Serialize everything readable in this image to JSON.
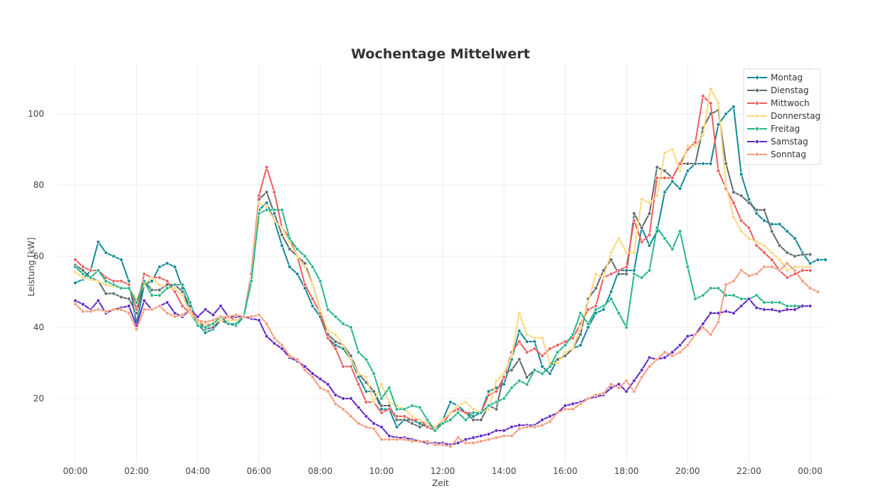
{
  "chart_data": {
    "type": "line",
    "title": "Wochentage Mittelwert",
    "xlabel": "Zeit",
    "ylabel": "Leistung [kW]",
    "ylim": [
      2,
      114
    ],
    "yticks": [
      20,
      40,
      60,
      80,
      100
    ],
    "xlim": [
      -0.6,
      24.5
    ],
    "xticks": [
      {
        "pos": 0,
        "label": "00:00"
      },
      {
        "pos": 2,
        "label": "02:00"
      },
      {
        "pos": 4,
        "label": "04:00"
      },
      {
        "pos": 6,
        "label": "06:00"
      },
      {
        "pos": 8,
        "label": "08:00"
      },
      {
        "pos": 10,
        "label": "10:00"
      },
      {
        "pos": 12,
        "label": "12:00"
      },
      {
        "pos": 14,
        "label": "14:00"
      },
      {
        "pos": 16,
        "label": "16:00"
      },
      {
        "pos": 18,
        "label": "18:00"
      },
      {
        "pos": 20,
        "label": "20:00"
      },
      {
        "pos": 22,
        "label": "22:00"
      },
      {
        "pos": 24,
        "label": "00:00"
      }
    ],
    "x_interval_hours": 0.25,
    "grid": true,
    "legend_position": "top-right",
    "series": [
      {
        "name": "Montag",
        "color": "#108a96",
        "values": [
          52.5,
          53.5,
          56,
          64,
          61,
          60,
          59,
          53,
          41,
          52,
          53,
          57,
          58,
          57,
          51,
          44,
          41,
          38.5,
          39.5,
          42,
          41,
          40.5,
          43,
          53,
          73,
          75,
          70,
          63,
          57,
          55,
          51,
          46,
          43,
          37,
          35,
          34,
          31,
          26,
          22,
          22,
          17,
          17,
          12,
          14,
          14,
          13,
          12,
          11,
          14,
          19,
          18,
          16,
          15,
          16,
          22,
          23,
          24,
          31,
          39,
          36,
          36,
          29,
          27,
          31,
          32,
          34,
          35,
          40,
          44,
          45,
          50,
          56,
          56,
          56,
          68,
          63,
          67,
          78,
          81,
          79,
          84,
          86,
          86,
          86,
          97,
          100,
          102,
          83,
          76,
          72,
          70,
          69,
          69,
          67,
          65,
          61,
          58,
          59,
          59
        ]
      },
      {
        "name": "Dienstag",
        "color": "#5f6b6d",
        "values": [
          57.5,
          56,
          54,
          53,
          49.5,
          49.5,
          48.5,
          48,
          44,
          53,
          50.5,
          50.5,
          52,
          52,
          50,
          46,
          42,
          39.5,
          40,
          42,
          41,
          41,
          43,
          55,
          76,
          78,
          72,
          66,
          62,
          60,
          58,
          52,
          45,
          38,
          36,
          35,
          32,
          27,
          24.5,
          22,
          18,
          18,
          14,
          14,
          13,
          12,
          13,
          11.5,
          14,
          16,
          17,
          16,
          14,
          14,
          18,
          17,
          27,
          28,
          31,
          26,
          28,
          27,
          29,
          31,
          32,
          34,
          38,
          48,
          51,
          56,
          59,
          55,
          55,
          72,
          68,
          72,
          85,
          84,
          82,
          86,
          86,
          86,
          96,
          100,
          101,
          86,
          78,
          77,
          75,
          73,
          73,
          67,
          63,
          61,
          60,
          60.5,
          60.5
        ]
      },
      {
        "name": "Mittwoch",
        "color": "#f05d5e",
        "values": [
          59,
          57,
          56,
          56,
          54,
          53,
          53,
          52,
          45,
          55,
          54,
          54,
          53,
          50,
          46,
          44,
          42,
          40.5,
          41,
          42,
          43,
          42,
          43,
          55,
          77,
          85,
          78,
          68,
          65,
          60,
          52,
          48,
          44,
          37,
          34,
          29,
          29,
          24,
          19,
          19,
          16,
          17,
          15,
          15,
          14,
          14,
          12,
          11,
          13,
          16,
          17,
          16,
          16,
          16,
          21,
          22,
          26,
          33,
          36,
          33,
          34,
          32,
          34,
          35,
          36,
          37,
          41,
          45,
          46,
          54,
          55,
          56,
          57,
          70,
          64,
          66,
          82,
          82,
          82,
          86,
          90,
          92,
          105,
          103,
          84,
          79,
          75,
          70,
          68,
          63,
          61,
          59,
          56,
          54,
          55,
          56,
          56
        ]
      },
      {
        "name": "Donnerstag",
        "color": "#fed781",
        "values": [
          55.5,
          54,
          53.5,
          53,
          52,
          51.5,
          51,
          51,
          48,
          52,
          54,
          52,
          51,
          51,
          49,
          44,
          41.5,
          41,
          41,
          42,
          42,
          42,
          43,
          54,
          75,
          74,
          70,
          68,
          64,
          60,
          57,
          52,
          45,
          39,
          38,
          35,
          31,
          27,
          26,
          19,
          24,
          19,
          18,
          17,
          15,
          14,
          13,
          12,
          14,
          16,
          18,
          19,
          17,
          16,
          17,
          25,
          27,
          32,
          44,
          38,
          37,
          37,
          30,
          30,
          33,
          34,
          40,
          47,
          55,
          54,
          61,
          65,
          61,
          61,
          76,
          75,
          77,
          89,
          90,
          84,
          91,
          91,
          94,
          107,
          103,
          80,
          71,
          67,
          65,
          64,
          63,
          61,
          59,
          56,
          57,
          57,
          57
        ]
      },
      {
        "name": "Freitag",
        "color": "#26b78b",
        "values": [
          57,
          55,
          54,
          56,
          53,
          52,
          51,
          51,
          47,
          53,
          49,
          49,
          51,
          52,
          52,
          47,
          40.5,
          40,
          41,
          43,
          41,
          41,
          43,
          53,
          72,
          73,
          73,
          73,
          65,
          62,
          60,
          57,
          53,
          45,
          43,
          41,
          40,
          33,
          31,
          27,
          20,
          23,
          17,
          17,
          18,
          17.5,
          14,
          11,
          13,
          14,
          16,
          14,
          16,
          16,
          18,
          19,
          20,
          23,
          25,
          24,
          28,
          27,
          29,
          33,
          35,
          38,
          44,
          41,
          45,
          46,
          48,
          44,
          40,
          55,
          54,
          56,
          68,
          65,
          62,
          67,
          57,
          48,
          49,
          51,
          51,
          49,
          49,
          48,
          48,
          49,
          47,
          47,
          47,
          46,
          46,
          46,
          46
        ]
      },
      {
        "name": "Samstag",
        "color": "#6028c8",
        "values": [
          47.5,
          46.5,
          45,
          47.5,
          44,
          45,
          45.5,
          46,
          40.5,
          47.5,
          45,
          46,
          47,
          44,
          43,
          45,
          43,
          45,
          43.5,
          46,
          43,
          43,
          43,
          42.5,
          42,
          37.5,
          35.5,
          34,
          31.5,
          30.5,
          29,
          27,
          25.5,
          24,
          21,
          20,
          20,
          17.5,
          15,
          13,
          12,
          9.5,
          9,
          9,
          8.5,
          8,
          7.5,
          7.5,
          7.5,
          7,
          7.5,
          8.5,
          9,
          9.5,
          10,
          11,
          11,
          12,
          12.5,
          12.5,
          12.5,
          14,
          15,
          16,
          18,
          18.5,
          19,
          20,
          20.5,
          21,
          23,
          24,
          22,
          25,
          28,
          31.5,
          31,
          31.5,
          33,
          35,
          37.5,
          38,
          41,
          44,
          44,
          44.5,
          44,
          46,
          48,
          45.5,
          45,
          45,
          44.5,
          45,
          45,
          46,
          46
        ]
      },
      {
        "name": "Sonntag",
        "color": "#f69b7c",
        "values": [
          46.5,
          44.5,
          44.5,
          45,
          44.5,
          45,
          45,
          44,
          39.5,
          45,
          45,
          46,
          44,
          43,
          43.5,
          45,
          42,
          41.5,
          42,
          43,
          43,
          43.5,
          43,
          43,
          43.5,
          41,
          37,
          35,
          32,
          31,
          28,
          26,
          23,
          22,
          18.5,
          17,
          15,
          13,
          12,
          11.5,
          8.5,
          8.5,
          8.5,
          8.5,
          8,
          8,
          8,
          7,
          7,
          6.5,
          9,
          7.5,
          7.5,
          8,
          8.5,
          9,
          9.5,
          9.5,
          11.5,
          12,
          12,
          12.5,
          13.5,
          16,
          17,
          17,
          18.5,
          20,
          21,
          21.5,
          24,
          23,
          25,
          22,
          26,
          29,
          31,
          33,
          32,
          33,
          35,
          38,
          40,
          38,
          41.5,
          52,
          53,
          56,
          54.5,
          55,
          57,
          57,
          56,
          58,
          56,
          53,
          51,
          50
        ]
      }
    ]
  }
}
